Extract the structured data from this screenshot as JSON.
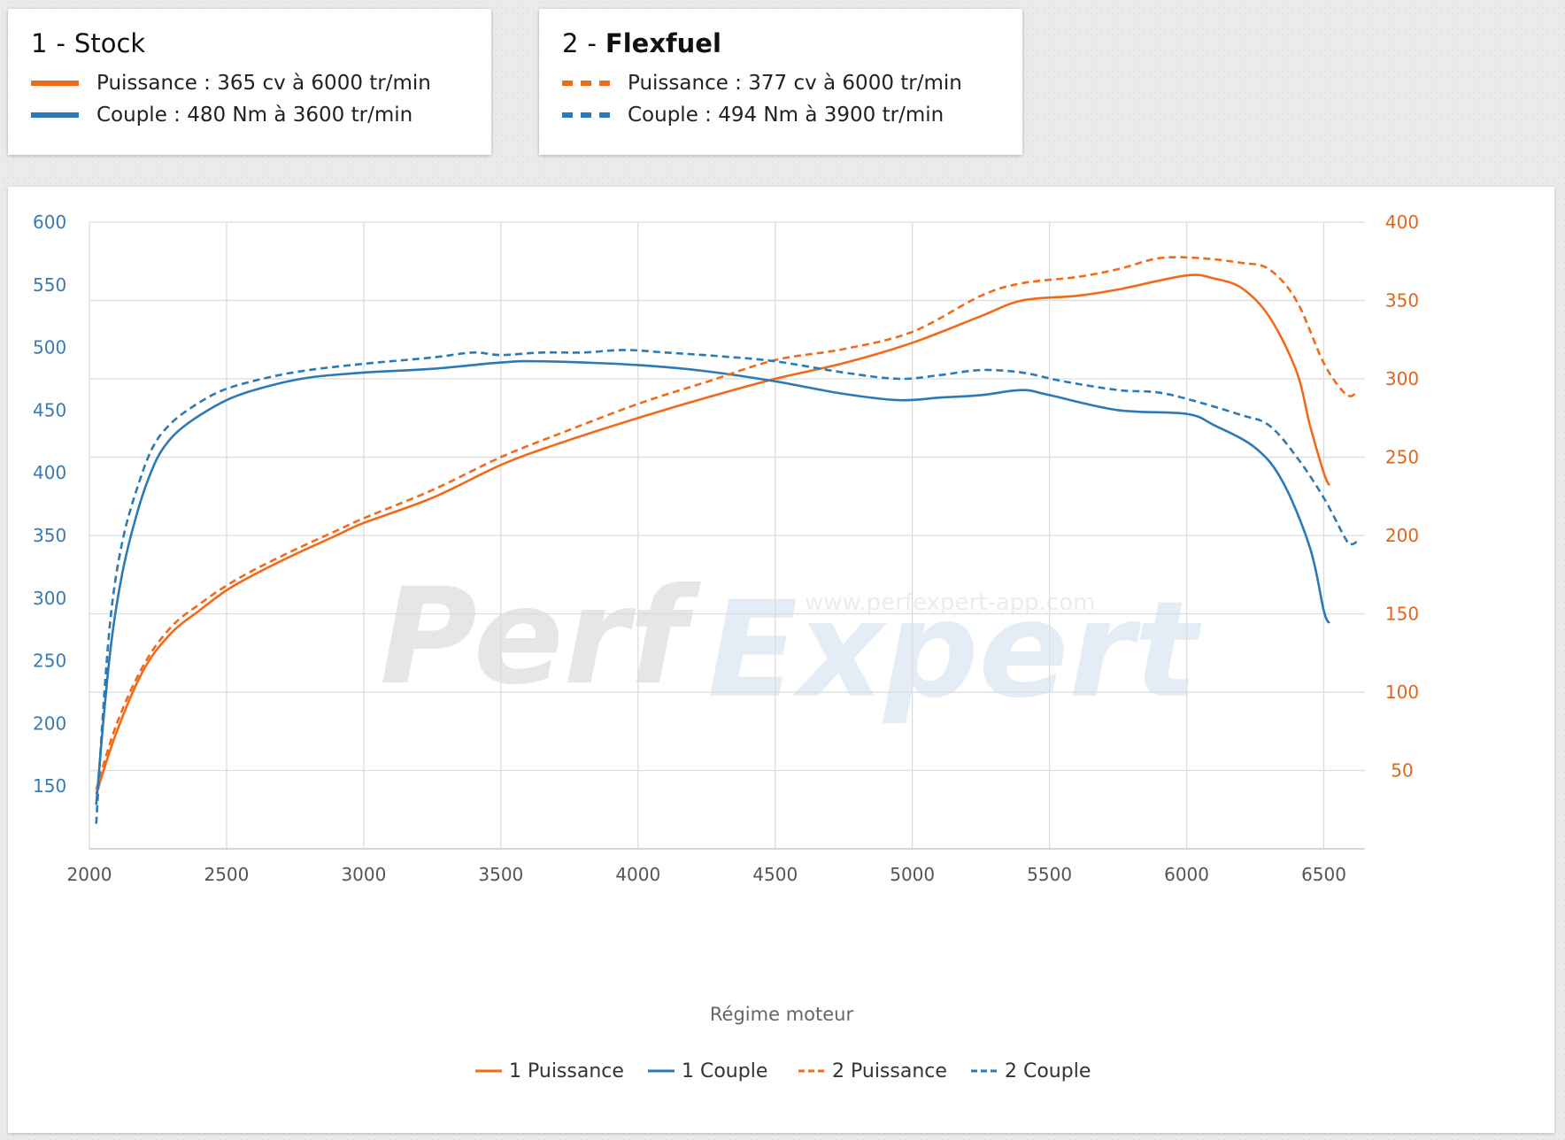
{
  "cards": [
    {
      "num": "1",
      "sep": "-",
      "name": "Stock",
      "line1": "Puissance : 365 cv à 6000 tr/min",
      "line2": "Couple : 480 Nm à 3600 tr/min"
    },
    {
      "num": "2",
      "sep": "-",
      "name": "Flexfuel",
      "line1": "Puissance : 377 cv à 6000 tr/min",
      "line2": "Couple : 494 Nm à 3900 tr/min"
    }
  ],
  "watermark": {
    "brand_a": "Perf",
    "brand_b": "Expert",
    "url": "www.perfexpert-app.com"
  },
  "colors": {
    "power": "#f26a18",
    "torque": "#2b7ab5"
  },
  "chart_data": {
    "type": "line",
    "xlabel": "Régime moteur",
    "xlim": [
      2000,
      6650
    ],
    "x_ticks": [
      2000,
      2500,
      3000,
      3500,
      4000,
      4500,
      5000,
      5500,
      6000,
      6500
    ],
    "y_left": {
      "lim": [
        100,
        600
      ],
      "ticks": [
        150,
        200,
        250,
        300,
        350,
        400,
        450,
        500,
        550,
        600
      ]
    },
    "y_right": {
      "lim": [
        0,
        400
      ],
      "ticks": [
        50,
        100,
        150,
        200,
        250,
        300,
        350,
        400
      ]
    },
    "grid": true,
    "legend_position": "bottom",
    "series": [
      {
        "name": "1 Puissance",
        "axis": "right",
        "color": "#f26a18",
        "dashed": false,
        "points": [
          [
            2025,
            35
          ],
          [
            2100,
            75
          ],
          [
            2200,
            115
          ],
          [
            2300,
            138
          ],
          [
            2400,
            152
          ],
          [
            2500,
            165
          ],
          [
            2600,
            175
          ],
          [
            2750,
            188
          ],
          [
            2900,
            200
          ],
          [
            3000,
            208
          ],
          [
            3250,
            224
          ],
          [
            3500,
            245
          ],
          [
            3700,
            258
          ],
          [
            4000,
            275
          ],
          [
            4250,
            288
          ],
          [
            4500,
            300
          ],
          [
            4750,
            310
          ],
          [
            5000,
            323
          ],
          [
            5250,
            340
          ],
          [
            5400,
            350
          ],
          [
            5600,
            353
          ],
          [
            5750,
            357
          ],
          [
            6000,
            366
          ],
          [
            6100,
            364
          ],
          [
            6200,
            358
          ],
          [
            6300,
            340
          ],
          [
            6400,
            305
          ],
          [
            6450,
            270
          ],
          [
            6500,
            240
          ],
          [
            6520,
            232
          ]
        ]
      },
      {
        "name": "1 Couple",
        "axis": "left",
        "color": "#2b7ab5",
        "dashed": false,
        "points": [
          [
            2025,
            135
          ],
          [
            2050,
            200
          ],
          [
            2080,
            265
          ],
          [
            2120,
            320
          ],
          [
            2170,
            365
          ],
          [
            2220,
            398
          ],
          [
            2270,
            420
          ],
          [
            2350,
            438
          ],
          [
            2500,
            458
          ],
          [
            2650,
            469
          ],
          [
            2800,
            476
          ],
          [
            3000,
            480
          ],
          [
            3250,
            483
          ],
          [
            3500,
            488
          ],
          [
            3650,
            489
          ],
          [
            4000,
            486
          ],
          [
            4250,
            481
          ],
          [
            4500,
            473
          ],
          [
            4750,
            463
          ],
          [
            4950,
            458
          ],
          [
            5100,
            460
          ],
          [
            5250,
            462
          ],
          [
            5400,
            466
          ],
          [
            5500,
            462
          ],
          [
            5750,
            450
          ],
          [
            6000,
            447
          ],
          [
            6100,
            438
          ],
          [
            6250,
            420
          ],
          [
            6350,
            393
          ],
          [
            6450,
            340
          ],
          [
            6500,
            290
          ],
          [
            6520,
            280
          ]
        ]
      },
      {
        "name": "2 Puissance",
        "axis": "right",
        "color": "#f26a18",
        "dashed": false,
        "points": [
          [
            2025,
            38
          ],
          [
            2100,
            80
          ],
          [
            2200,
            118
          ],
          [
            2300,
            142
          ],
          [
            2400,
            156
          ],
          [
            2500,
            168
          ],
          [
            2600,
            178
          ],
          [
            2750,
            191
          ],
          [
            2900,
            203
          ],
          [
            3000,
            211
          ],
          [
            3250,
            229
          ],
          [
            3500,
            250
          ],
          [
            3700,
            264
          ],
          [
            4000,
            284
          ],
          [
            4250,
            298
          ],
          [
            4500,
            312
          ],
          [
            4750,
            319
          ],
          [
            5000,
            330
          ],
          [
            5250,
            353
          ],
          [
            5400,
            361
          ],
          [
            5600,
            365
          ],
          [
            5750,
            370
          ],
          [
            5900,
            377
          ],
          [
            6050,
            377
          ],
          [
            6200,
            374
          ],
          [
            6300,
            370
          ],
          [
            6400,
            350
          ],
          [
            6500,
            310
          ],
          [
            6570,
            292
          ],
          [
            6600,
            289
          ],
          [
            6620,
            292
          ]
        ]
      },
      {
        "name": "2 Couple",
        "axis": "left",
        "color": "#2b7ab5",
        "dashed": true,
        "points": [
          [
            2025,
            120
          ],
          [
            2050,
            210
          ],
          [
            2080,
            290
          ],
          [
            2120,
            345
          ],
          [
            2170,
            385
          ],
          [
            2230,
            420
          ],
          [
            2300,
            440
          ],
          [
            2400,
            456
          ],
          [
            2500,
            467
          ],
          [
            2650,
            476
          ],
          [
            2800,
            482
          ],
          [
            3000,
            487
          ],
          [
            3250,
            492
          ],
          [
            3400,
            496
          ],
          [
            3500,
            494
          ],
          [
            3650,
            496
          ],
          [
            3800,
            496
          ],
          [
            3950,
            498
          ],
          [
            4100,
            496
          ],
          [
            4300,
            493
          ],
          [
            4500,
            489
          ],
          [
            4750,
            480
          ],
          [
            4950,
            475
          ],
          [
            5100,
            478
          ],
          [
            5250,
            482
          ],
          [
            5400,
            480
          ],
          [
            5550,
            473
          ],
          [
            5750,
            466
          ],
          [
            5900,
            464
          ],
          [
            6050,
            456
          ],
          [
            6200,
            446
          ],
          [
            6300,
            438
          ],
          [
            6400,
            413
          ],
          [
            6500,
            380
          ],
          [
            6580,
            347
          ],
          [
            6600,
            343
          ],
          [
            6620,
            345
          ]
        ]
      }
    ]
  }
}
